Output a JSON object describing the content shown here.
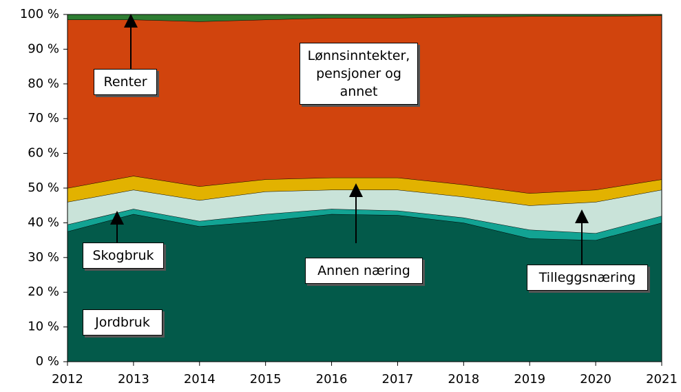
{
  "chart_data": {
    "type": "stacked_area",
    "x": [
      2012,
      2013,
      2014,
      2015,
      2016,
      2017,
      2018,
      2019,
      2020,
      2021
    ],
    "xlim": [
      2012,
      2021
    ],
    "xticks": [
      2012,
      2013,
      2014,
      2015,
      2016,
      2017,
      2018,
      2019,
      2020,
      2021
    ],
    "ylim": [
      0,
      100
    ],
    "yticks": [
      {
        "value": 0,
        "label": "0 %"
      },
      {
        "value": 10,
        "label": "10 %"
      },
      {
        "value": 20,
        "label": "20 %"
      },
      {
        "value": 30,
        "label": "30 %"
      },
      {
        "value": 40,
        "label": "40 %"
      },
      {
        "value": 50,
        "label": "50 %"
      },
      {
        "value": 60,
        "label": "60 %"
      },
      {
        "value": 70,
        "label": "70 %"
      },
      {
        "value": 80,
        "label": "80 %"
      },
      {
        "value": 90,
        "label": "90 %"
      },
      {
        "value": 100,
        "label": "100 %"
      }
    ],
    "series": [
      {
        "name": "Jordbruk",
        "color": "#035a4a",
        "values": [
          37.5,
          42.5,
          39,
          40.5,
          42.5,
          42.2,
          40,
          35.5,
          35,
          40
        ]
      },
      {
        "name": "Skogbruk",
        "color": "#12a393",
        "values": [
          2,
          1.5,
          1.5,
          2,
          1.5,
          1.3,
          1.5,
          2.5,
          2,
          2
        ]
      },
      {
        "name": "Tilleggsnæring",
        "color": "#c9e3d9",
        "values": [
          6.5,
          5.5,
          6,
          6.5,
          5.5,
          6,
          6,
          7,
          9,
          7.5
        ]
      },
      {
        "name": "Annen næring",
        "color": "#e2b200",
        "values": [
          4,
          4,
          4,
          3.5,
          3.5,
          3.5,
          3.5,
          3.5,
          3.5,
          3
        ]
      },
      {
        "name": "Lønnsinntekter, pensjoner og annet",
        "color": "#d1440d",
        "values": [
          48.5,
          45,
          47.5,
          46,
          46,
          46,
          48.3,
          51,
          50,
          47.2
        ]
      },
      {
        "name": "Renter",
        "color": "#2e7d32",
        "values": [
          1.5,
          1.5,
          2,
          1.5,
          1,
          1,
          0.7,
          0.5,
          0.5,
          0.3
        ]
      }
    ]
  }
}
